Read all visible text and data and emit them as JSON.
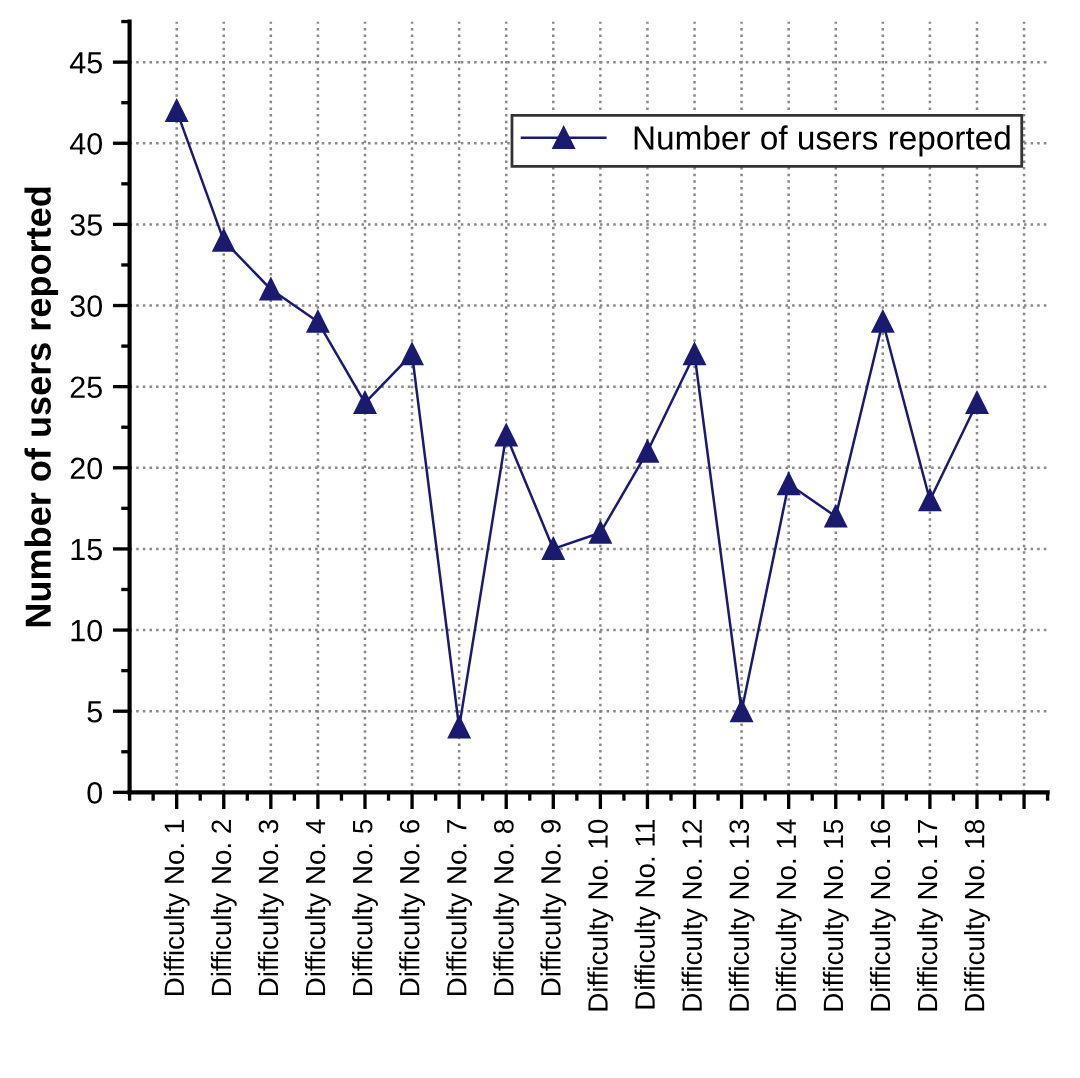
{
  "chart_data": {
    "type": "line",
    "ylabel": "Number of users reported",
    "categories": [
      "Difficulty No. 1",
      "Difficulty No. 2",
      "Difficulty No. 3",
      "Difficulty No. 4",
      "Difficulty No. 5",
      "Difficulty No. 6",
      "Difficulty No. 7",
      "Difficulty No. 8",
      "Difficulty No. 9",
      "Difficulty No. 10",
      "Difficulty No. 11",
      "Difficulty No. 12",
      "Difficulty No. 13",
      "Difficulty No. 14",
      "Difficulty No. 15",
      "Difficulty No. 16",
      "Difficulty No. 17",
      "Difficulty No. 18",
      null
    ],
    "series": [
      {
        "name": "Number of users reported",
        "color": "#1a1a6e",
        "values": [
          42,
          34,
          31,
          29,
          24,
          27,
          4,
          22,
          15,
          16,
          21,
          27,
          5,
          19,
          17,
          29,
          18,
          24,
          null
        ]
      }
    ],
    "ylim": [
      0,
      47.5
    ],
    "yticks": [
      0,
      5,
      10,
      15,
      20,
      25,
      30,
      35,
      40,
      45
    ],
    "grid": true,
    "legend": "top right",
    "marker": "triangle",
    "line_style": "solid"
  }
}
